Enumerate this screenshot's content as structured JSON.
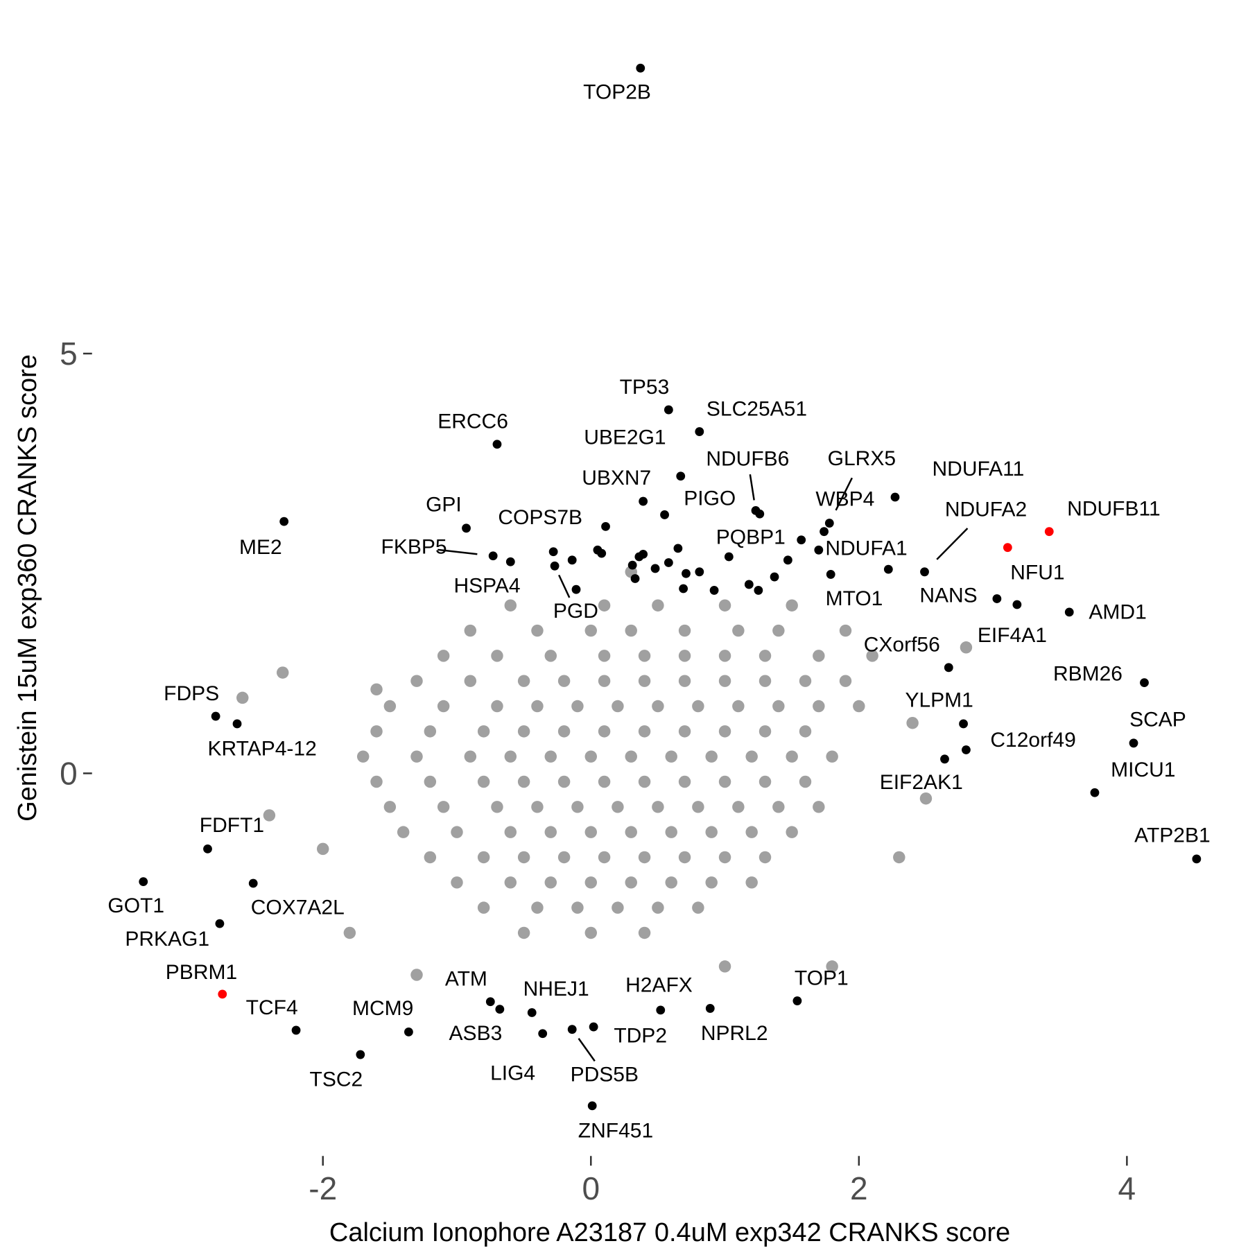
{
  "chart_data": {
    "type": "scatter",
    "xlabel": "Calcium Ionophore A23187 0.4uM exp342 CRANKS score",
    "ylabel": "Genistein 15uM exp360 CRANKS score",
    "xlim": [
      -3.7,
      4.9
    ],
    "ylim": [
      -4.5,
      9
    ],
    "xticks": [
      -2,
      0,
      2,
      4
    ],
    "yticks": [
      0,
      5
    ],
    "grid": false,
    "series": [
      {
        "color": "#a0a0a0",
        "x": [
          -0.6,
          0.1,
          0.5,
          1.0,
          1.5,
          -0.9,
          -0.4,
          0.0,
          0.3,
          0.7,
          1.1,
          1.4,
          1.9,
          -1.1,
          -0.7,
          -0.3,
          0.1,
          0.4,
          0.7,
          1.0,
          1.3,
          1.7,
          2.1,
          -1.3,
          -0.9,
          -0.5,
          -0.2,
          0.1,
          0.4,
          0.7,
          1.0,
          1.3,
          1.6,
          1.9,
          -1.5,
          -1.1,
          -0.7,
          -0.4,
          -0.1,
          0.2,
          0.5,
          0.8,
          1.1,
          1.4,
          1.7,
          2.0,
          -1.6,
          -1.2,
          -0.8,
          -0.5,
          -0.2,
          0.1,
          0.4,
          0.7,
          1.0,
          1.3,
          1.6,
          -1.7,
          -1.3,
          -0.9,
          -0.6,
          -0.3,
          0.0,
          0.3,
          0.6,
          0.9,
          1.2,
          1.5,
          1.8,
          -1.6,
          -1.2,
          -0.8,
          -0.5,
          -0.2,
          0.1,
          0.4,
          0.7,
          1.0,
          1.3,
          1.6,
          -1.5,
          -1.1,
          -0.7,
          -0.4,
          -0.1,
          0.2,
          0.5,
          0.8,
          1.1,
          1.4,
          1.7,
          -1.4,
          -1.0,
          -0.6,
          -0.3,
          0.0,
          0.3,
          0.6,
          0.9,
          1.2,
          1.5,
          -1.2,
          -0.8,
          -0.5,
          -0.2,
          0.1,
          0.4,
          0.7,
          1.0,
          1.3,
          -1.0,
          -0.6,
          -0.3,
          0.0,
          0.3,
          0.6,
          0.9,
          1.2,
          -0.8,
          -0.4,
          -0.1,
          0.2,
          0.5,
          0.8,
          -0.5,
          0.0,
          0.4,
          -2.3,
          -1.6,
          -2.4,
          -2.0,
          1.0,
          2.3,
          2.8,
          -1.8,
          2.5,
          0.3,
          -1.3,
          1.8,
          2.4,
          -2.6
        ],
        "values": [
          2.0,
          2.0,
          2.0,
          2.0,
          2.0,
          1.7,
          1.7,
          1.7,
          1.7,
          1.7,
          1.7,
          1.7,
          1.7,
          1.4,
          1.4,
          1.4,
          1.4,
          1.4,
          1.4,
          1.4,
          1.4,
          1.4,
          1.4,
          1.1,
          1.1,
          1.1,
          1.1,
          1.1,
          1.1,
          1.1,
          1.1,
          1.1,
          1.1,
          1.1,
          0.8,
          0.8,
          0.8,
          0.8,
          0.8,
          0.8,
          0.8,
          0.8,
          0.8,
          0.8,
          0.8,
          0.8,
          0.5,
          0.5,
          0.5,
          0.5,
          0.5,
          0.5,
          0.5,
          0.5,
          0.5,
          0.5,
          0.5,
          0.2,
          0.2,
          0.2,
          0.2,
          0.2,
          0.2,
          0.2,
          0.2,
          0.2,
          0.2,
          0.2,
          0.2,
          -0.1,
          -0.1,
          -0.1,
          -0.1,
          -0.1,
          -0.1,
          -0.1,
          -0.1,
          -0.1,
          -0.1,
          -0.1,
          -0.4,
          -0.4,
          -0.4,
          -0.4,
          -0.4,
          -0.4,
          -0.4,
          -0.4,
          -0.4,
          -0.4,
          -0.4,
          -0.7,
          -0.7,
          -0.7,
          -0.7,
          -0.7,
          -0.7,
          -0.7,
          -0.7,
          -0.7,
          -0.7,
          -1.0,
          -1.0,
          -1.0,
          -1.0,
          -1.0,
          -1.0,
          -1.0,
          -1.0,
          -1.0,
          -1.3,
          -1.3,
          -1.3,
          -1.3,
          -1.3,
          -1.3,
          -1.3,
          -1.3,
          -1.6,
          -1.6,
          -1.6,
          -1.6,
          -1.6,
          -1.6,
          -1.9,
          -1.9,
          -1.9,
          1.2,
          1.0,
          -0.5,
          -0.9,
          -2.3,
          -1.0,
          1.5,
          -1.9,
          -0.3,
          2.4,
          -2.4,
          -2.3,
          0.6,
          0.9
        ]
      },
      {
        "color": "#000000",
        "labels": [
          "TOP2B",
          "TP53",
          "SLC25A51",
          "ERCC6",
          "UBE2G1",
          "UBXN7",
          "NDUFB6",
          "GLRX5",
          "WBP4",
          "NDUFA11",
          "NDUFA2",
          "GPI",
          "ME2",
          "COPS7B",
          "PIGO",
          "FKBP5",
          "HSPA4",
          "PGD",
          "PQBP1",
          "NDUFA1",
          "MTO1",
          "NANS",
          "EIF4A1",
          "AMD1",
          "CXorf56",
          "RBM26",
          "YLPM1",
          "C12orf49",
          "EIF2AK1",
          "SCAP",
          "MICU1",
          "ATP2B1",
          "FDPS",
          "KRTAP4-12",
          "FDFT1",
          "GOT1",
          "COX7A2L",
          "PRKAG1",
          "TCF4",
          "TSC2",
          "MCM9",
          "ATM",
          "ASB3",
          "NHEJ1",
          "LIG4",
          "PDS5B",
          "TDP2",
          "H2AFX",
          "NPRL2",
          "TOP1",
          "ZNF451",
          null,
          null,
          null,
          null,
          null,
          null,
          null,
          null,
          null,
          null,
          null,
          null,
          null,
          null,
          null,
          null,
          null,
          null,
          null,
          null,
          null,
          null,
          null
        ],
        "x": [
          0.37,
          0.58,
          0.81,
          -0.7,
          0.67,
          0.39,
          1.23,
          1.78,
          1.74,
          2.27,
          2.49,
          -0.93,
          -2.29,
          0.11,
          0.55,
          -0.73,
          -0.6,
          -0.27,
          1.03,
          1.7,
          1.79,
          3.03,
          3.18,
          3.57,
          2.67,
          4.13,
          2.78,
          2.8,
          2.64,
          4.05,
          3.76,
          4.52,
          -2.8,
          -2.64,
          -2.86,
          -3.34,
          -2.52,
          -2.77,
          -2.2,
          -1.72,
          -1.36,
          -0.75,
          -0.68,
          -0.44,
          -0.36,
          -0.14,
          0.02,
          0.52,
          0.89,
          1.54,
          0.01,
          -0.14,
          0.05,
          0.08,
          -0.11,
          0.31,
          0.36,
          0.39,
          0.33,
          0.48,
          0.58,
          0.65,
          0.71,
          0.81,
          0.69,
          0.92,
          1.26,
          1.57,
          1.47,
          1.37,
          1.18,
          1.25,
          2.22,
          -0.28
        ],
        "values": [
          8.4,
          4.33,
          4.07,
          3.92,
          3.54,
          3.24,
          3.13,
          2.98,
          2.88,
          3.29,
          2.4,
          2.92,
          3.0,
          2.94,
          3.08,
          2.59,
          2.52,
          2.47,
          2.58,
          2.66,
          2.37,
          2.08,
          2.01,
          1.92,
          1.26,
          1.08,
          0.59,
          0.28,
          0.17,
          0.36,
          -0.23,
          -1.02,
          0.68,
          0.59,
          -0.9,
          -1.29,
          -1.31,
          -1.79,
          -3.06,
          -3.35,
          -3.08,
          -2.72,
          -2.81,
          -2.85,
          -3.1,
          -3.05,
          -3.02,
          -2.82,
          -2.8,
          -2.71,
          -3.96,
          2.54,
          2.66,
          2.62,
          2.19,
          2.48,
          2.58,
          2.61,
          2.32,
          2.44,
          2.51,
          2.68,
          2.38,
          2.4,
          2.2,
          2.18,
          3.09,
          2.78,
          2.54,
          2.34,
          2.25,
          2.18,
          2.43,
          2.64
        ]
      },
      {
        "color": "#ff0000",
        "labels": [
          "NDUFB11",
          "NFU1",
          "PBRM1"
        ],
        "x": [
          3.42,
          3.11,
          -2.75
        ],
        "values": [
          2.88,
          2.69,
          -2.63
        ]
      }
    ]
  }
}
